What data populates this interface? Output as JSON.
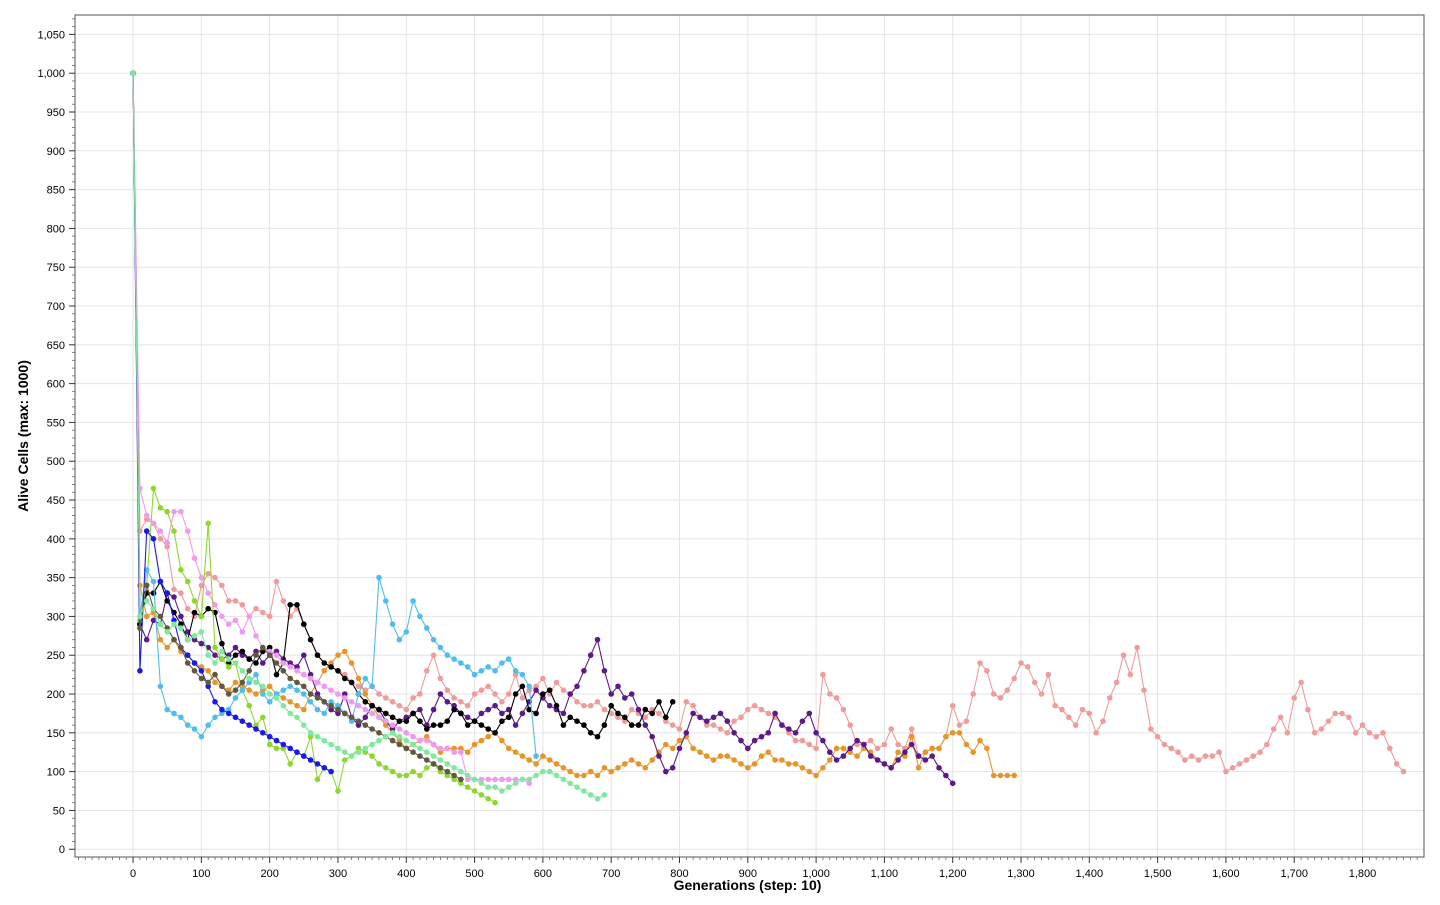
{
  "chart_data": {
    "type": "line",
    "title": "",
    "xlabel": "Generations (step: 10)",
    "ylabel": "Alive Cells (max: 1000)",
    "xlim": [
      -85,
      1890
    ],
    "ylim": [
      -10,
      1075
    ],
    "x_ticks": [
      0,
      100,
      200,
      300,
      400,
      500,
      600,
      700,
      800,
      900,
      1000,
      1100,
      1200,
      1300,
      1400,
      1500,
      1600,
      1700,
      1800
    ],
    "x_tick_labels": [
      "0",
      "100",
      "200",
      "300",
      "400",
      "500",
      "600",
      "700",
      "800",
      "900",
      "1,000",
      "1,100",
      "1,200",
      "1,300",
      "1,400",
      "1,500",
      "1,600",
      "1,700",
      "1,800"
    ],
    "y_ticks": [
      0,
      50,
      100,
      150,
      200,
      250,
      300,
      350,
      400,
      450,
      500,
      550,
      600,
      650,
      700,
      750,
      800,
      850,
      900,
      950,
      1000,
      1050
    ],
    "y_tick_labels": [
      "0",
      "50",
      "100",
      "150",
      "200",
      "250",
      "300",
      "350",
      "400",
      "450",
      "500",
      "550",
      "600",
      "650",
      "700",
      "750",
      "800",
      "850",
      "900",
      "950",
      "1,000",
      "1,050"
    ],
    "grid": true,
    "legend": "none",
    "x_step": 10,
    "series": [
      {
        "color": "#ee9c9c",
        "values": [
          1000,
          410,
          425,
          420,
          400,
          390,
          335,
          330,
          310,
          300,
          340,
          355,
          350,
          340,
          320,
          320,
          315,
          300,
          310,
          305,
          300,
          345,
          320,
          300,
          310,
          290,
          270,
          250,
          240,
          235,
          230,
          225,
          215,
          210,
          205,
          210,
          200,
          195,
          190,
          185,
          180,
          195,
          200,
          230,
          250,
          220,
          205,
          195,
          190,
          185,
          200,
          205,
          210,
          200,
          190,
          200,
          225,
          195,
          205,
          210,
          220,
          200,
          215,
          205,
          200,
          190,
          185,
          185,
          190,
          180,
          175,
          170,
          165,
          180,
          175,
          170,
          180,
          175,
          165,
          160,
          155,
          190,
          185,
          170,
          160,
          160,
          155,
          150,
          165,
          170,
          180,
          185,
          180,
          175,
          170,
          160,
          150,
          140,
          140,
          135,
          130,
          225,
          200,
          195,
          180,
          160,
          135,
          135,
          140,
          130,
          135,
          155,
          135,
          130,
          155,
          120,
          125,
          130,
          130,
          145,
          185,
          160,
          165,
          200,
          240,
          230,
          200,
          195,
          205,
          220,
          240,
          235,
          215,
          200,
          225,
          185,
          180,
          170,
          160,
          180,
          175,
          150,
          165,
          195,
          215,
          250,
          225,
          260,
          205,
          155,
          145,
          135,
          130,
          125,
          115,
          120,
          115,
          120,
          120,
          125,
          100,
          105,
          110,
          115,
          120,
          125,
          135,
          155,
          170,
          150,
          195,
          215,
          180,
          150,
          155,
          165,
          175,
          175,
          170,
          150,
          160,
          150,
          145,
          150,
          130,
          110,
          100
        ]
      },
      {
        "color": "#e5962b",
        "values": [
          1000,
          340,
          300,
          305,
          270,
          260,
          270,
          255,
          250,
          240,
          235,
          230,
          215,
          210,
          205,
          215,
          210,
          205,
          200,
          205,
          210,
          200,
          195,
          190,
          185,
          180,
          200,
          215,
          230,
          240,
          250,
          255,
          240,
          220,
          200,
          185,
          170,
          160,
          150,
          140,
          130,
          135,
          140,
          145,
          135,
          125,
          130,
          130,
          130,
          125,
          135,
          140,
          145,
          150,
          140,
          130,
          125,
          120,
          115,
          110,
          120,
          115,
          110,
          105,
          100,
          95,
          95,
          100,
          95,
          105,
          100,
          105,
          110,
          115,
          110,
          105,
          115,
          125,
          135,
          130,
          140,
          145,
          130,
          125,
          120,
          115,
          120,
          120,
          115,
          110,
          105,
          110,
          120,
          125,
          115,
          115,
          110,
          110,
          105,
          100,
          95,
          105,
          115,
          130,
          130,
          125,
          120,
          130,
          125,
          115,
          110,
          105,
          125,
          120,
          145,
          105,
          125,
          130,
          130,
          145,
          150,
          150,
          135,
          125,
          140,
          130,
          95,
          95,
          95,
          95
        ]
      },
      {
        "color": "#5b1a88",
        "values": [
          1000,
          290,
          270,
          295,
          290,
          330,
          325,
          300,
          280,
          270,
          265,
          260,
          250,
          245,
          250,
          260,
          250,
          245,
          255,
          240,
          250,
          255,
          245,
          240,
          235,
          250,
          225,
          200,
          190,
          180,
          175,
          200,
          170,
          160,
          170,
          185,
          180,
          165,
          155,
          165,
          170,
          175,
          180,
          160,
          180,
          200,
          190,
          185,
          175,
          170,
          165,
          175,
          180,
          185,
          175,
          180,
          160,
          175,
          190,
          205,
          195,
          185,
          180,
          175,
          200,
          210,
          230,
          250,
          270,
          230,
          200,
          210,
          195,
          200,
          180,
          160,
          145,
          120,
          100,
          105,
          130,
          150,
          175,
          170,
          165,
          170,
          175,
          165,
          150,
          140,
          130,
          140,
          145,
          150,
          175,
          160,
          155,
          150,
          165,
          175,
          150,
          140,
          125,
          115,
          120,
          130,
          140,
          135,
          120,
          115,
          110,
          105,
          115,
          125,
          135,
          120,
          115,
          120,
          105,
          95,
          85
        ]
      },
      {
        "color": "#000000",
        "values": [
          1000,
          290,
          330,
          330,
          345,
          320,
          305,
          290,
          270,
          305,
          300,
          310,
          305,
          265,
          240,
          250,
          255,
          245,
          240,
          255,
          260,
          225,
          240,
          315,
          315,
          290,
          270,
          250,
          240,
          235,
          230,
          220,
          215,
          200,
          190,
          185,
          180,
          175,
          170,
          165,
          165,
          175,
          165,
          155,
          160,
          160,
          165,
          180,
          175,
          160,
          165,
          160,
          155,
          150,
          165,
          170,
          200,
          210,
          180,
          175,
          200,
          205,
          185,
          160,
          170,
          165,
          160,
          150,
          145,
          160,
          185,
          175,
          170,
          160,
          160,
          180,
          175,
          190,
          170,
          190
        ]
      },
      {
        "color": "#8fd630",
        "values": [
          1000,
          295,
          340,
          465,
          440,
          435,
          410,
          360,
          345,
          320,
          300,
          420,
          260,
          245,
          235,
          240,
          205,
          185,
          160,
          170,
          135,
          130,
          130,
          110,
          125,
          120,
          145,
          90,
          105,
          100,
          75,
          115,
          120,
          130,
          125,
          120,
          110,
          105,
          100,
          95,
          95,
          100,
          95,
          105,
          110,
          100,
          95,
          90,
          85,
          80,
          75,
          70,
          65,
          60
        ]
      },
      {
        "color": "#52bde8",
        "values": [
          1000,
          300,
          360,
          345,
          210,
          180,
          175,
          170,
          160,
          155,
          145,
          160,
          170,
          175,
          180,
          195,
          205,
          215,
          225,
          200,
          190,
          200,
          205,
          210,
          205,
          200,
          190,
          180,
          175,
          190,
          185,
          175,
          165,
          200,
          220,
          210,
          350,
          320,
          290,
          270,
          280,
          320,
          300,
          285,
          270,
          260,
          250,
          245,
          240,
          235,
          225,
          230,
          235,
          230,
          240,
          245,
          230,
          225,
          210,
          120
        ]
      },
      {
        "color": "#f09aef",
        "values": [
          1000,
          465,
          430,
          420,
          410,
          395,
          435,
          435,
          410,
          375,
          350,
          330,
          315,
          300,
          290,
          295,
          280,
          300,
          275,
          260,
          255,
          250,
          240,
          235,
          230,
          225,
          220,
          215,
          210,
          205,
          200,
          195,
          190,
          185,
          180,
          175,
          170,
          165,
          160,
          155,
          150,
          145,
          140,
          140,
          135,
          130,
          130,
          125,
          125,
          90,
          90,
          90,
          90,
          90,
          90,
          90,
          90,
          90,
          85
        ]
      },
      {
        "color": "#1a1ae6",
        "values": [
          1000,
          230,
          410,
          400,
          345,
          330,
          295,
          260,
          250,
          240,
          230,
          210,
          190,
          180,
          175,
          170,
          165,
          160,
          155,
          150,
          145,
          140,
          135,
          130,
          125,
          120,
          115,
          110,
          105,
          100
        ]
      },
      {
        "color": "#625840",
        "values": [
          1000,
          285,
          340,
          310,
          300,
          285,
          270,
          260,
          240,
          230,
          220,
          215,
          225,
          210,
          200,
          205,
          215,
          230,
          250,
          260,
          250,
          240,
          230,
          220,
          215,
          210,
          200,
          195,
          190,
          185,
          180,
          175,
          170,
          165,
          160,
          155,
          150,
          145,
          140,
          135,
          130,
          125,
          120,
          115,
          110,
          105,
          100,
          95,
          90
        ]
      },
      {
        "color": "#80e8a0",
        "values": [
          1000,
          300,
          320,
          310,
          290,
          280,
          290,
          285,
          270,
          275,
          280,
          250,
          240,
          255,
          245,
          240,
          230,
          220,
          215,
          210,
          200,
          195,
          185,
          175,
          170,
          160,
          150,
          145,
          140,
          135,
          130,
          125,
          120,
          125,
          130,
          135,
          140,
          145,
          150,
          145,
          140,
          135,
          130,
          125,
          120,
          115,
          110,
          105,
          100,
          95,
          90,
          85,
          80,
          80,
          75,
          80,
          85,
          90,
          90,
          95,
          100,
          100,
          95,
          90,
          85,
          80,
          75,
          70,
          65,
          70
        ]
      }
    ]
  }
}
